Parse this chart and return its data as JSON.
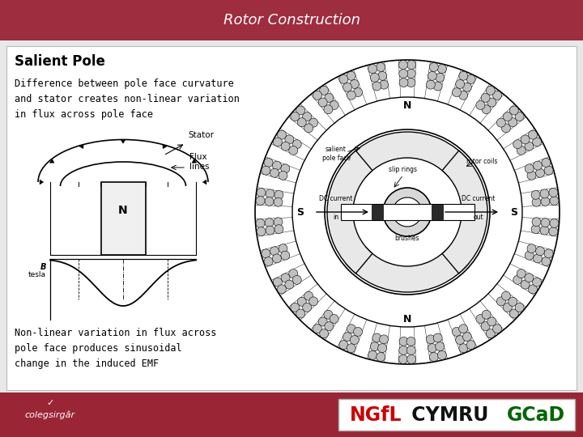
{
  "title": "Rotor Construction",
  "title_bg_top": "#b03050",
  "title_bg_bot": "#7a1530",
  "title_text_color": "#ffffff",
  "slide_bg_color": "#e8e8e8",
  "content_bg_color": "#ffffff",
  "footer_bg_color": "#9a2535",
  "heading": "Salient Pole",
  "text1": "Difference between pole face curvature\nand stator creates non-linear variation\nin flux across pole face",
  "text2": "Non-linear variation in flux across\npole face produces sinusoidal\nchange in the induced EMF",
  "ngfl_text": "NGfL",
  "cymru_text": " CYMRU ",
  "gcad_text": "GCaD",
  "college_text": "colegsirgâr",
  "ngfl_color": "#cc0000",
  "gcad_color": "#006600",
  "cymru_color": "#111111"
}
